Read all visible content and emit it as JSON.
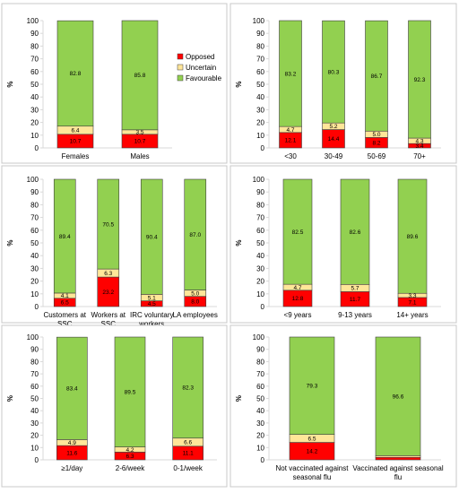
{
  "colors": {
    "opposed": "#ff0000",
    "uncertain": "#ffe699",
    "favourable": "#92d050"
  },
  "legend": {
    "placement": "right",
    "entries": [
      "Opposed",
      "Uncertain",
      "Favourable"
    ]
  },
  "chart_data": [
    {
      "type": "bar",
      "stacked": true,
      "title": "",
      "ylabel": "%",
      "ylim": [
        0,
        100
      ],
      "yticks": [
        0,
        10,
        20,
        30,
        40,
        50,
        60,
        70,
        80,
        90,
        100
      ],
      "categories": [
        [
          "Females"
        ],
        [
          "Males"
        ]
      ],
      "series": [
        {
          "name": "Opposed",
          "values": [
            10.7,
            10.7
          ]
        },
        {
          "name": "Uncertain",
          "values": [
            6.4,
            3.5
          ]
        },
        {
          "name": "Favourable",
          "values": [
            82.8,
            85.8
          ]
        }
      ],
      "show_legend": true
    },
    {
      "type": "bar",
      "stacked": true,
      "title": "",
      "ylabel": "%",
      "ylim": [
        0,
        100
      ],
      "yticks": [
        0,
        10,
        20,
        30,
        40,
        50,
        60,
        70,
        80,
        90,
        100
      ],
      "categories": [
        [
          "<30"
        ],
        [
          "30-49"
        ],
        [
          "50-69"
        ],
        [
          "70+"
        ]
      ],
      "series": [
        {
          "name": "Opposed",
          "values": [
            12.1,
            14.4,
            8.2,
            3.4
          ]
        },
        {
          "name": "Uncertain",
          "values": [
            4.7,
            5.2,
            5.0,
            4.3
          ]
        },
        {
          "name": "Favourable",
          "values": [
            83.2,
            80.3,
            86.7,
            92.3
          ]
        }
      ],
      "show_legend": false
    },
    {
      "type": "bar",
      "stacked": true,
      "title": "",
      "ylabel": "%",
      "ylim": [
        0,
        100
      ],
      "yticks": [
        0,
        10,
        20,
        30,
        40,
        50,
        60,
        70,
        80,
        90,
        100
      ],
      "categories": [
        [
          "Customers at",
          "SSC"
        ],
        [
          "Workers at",
          "SSC"
        ],
        [
          "IRC voluntary",
          "workers"
        ],
        [
          "LA employees"
        ]
      ],
      "series": [
        {
          "name": "Opposed",
          "values": [
            6.5,
            23.2,
            4.5,
            8.0
          ]
        },
        {
          "name": "Uncertain",
          "values": [
            4.1,
            6.3,
            5.1,
            5.0
          ]
        },
        {
          "name": "Favourable",
          "values": [
            89.4,
            70.5,
            90.4,
            87.0
          ]
        }
      ],
      "show_legend": false
    },
    {
      "type": "bar",
      "stacked": true,
      "title": "",
      "ylabel": "%",
      "ylim": [
        0,
        100
      ],
      "yticks": [
        0,
        10,
        20,
        30,
        40,
        50,
        60,
        70,
        80,
        90,
        100
      ],
      "categories": [
        [
          "<9 years"
        ],
        [
          "9-13 years"
        ],
        [
          "14+ years"
        ]
      ],
      "series": [
        {
          "name": "Opposed",
          "values": [
            12.8,
            11.7,
            7.1
          ]
        },
        {
          "name": "Uncertain",
          "values": [
            4.7,
            5.7,
            3.3
          ]
        },
        {
          "name": "Favourable",
          "values": [
            82.5,
            82.6,
            89.6
          ]
        }
      ],
      "show_legend": false
    },
    {
      "type": "bar",
      "stacked": true,
      "title": "",
      "ylabel": "%",
      "ylim": [
        0,
        100
      ],
      "yticks": [
        0,
        10,
        20,
        30,
        40,
        50,
        60,
        70,
        80,
        90,
        100
      ],
      "categories": [
        [
          "≥1/day"
        ],
        [
          "2-6/week"
        ],
        [
          "0-1/week"
        ]
      ],
      "series": [
        {
          "name": "Opposed",
          "values": [
            11.6,
            6.3,
            11.1
          ]
        },
        {
          "name": "Uncertain",
          "values": [
            4.9,
            4.2,
            6.6
          ]
        },
        {
          "name": "Favourable",
          "values": [
            83.4,
            89.5,
            82.3
          ]
        }
      ],
      "show_legend": false
    },
    {
      "type": "bar",
      "stacked": true,
      "title": "",
      "ylabel": "%",
      "ylim": [
        0,
        100
      ],
      "yticks": [
        0,
        10,
        20,
        30,
        40,
        50,
        60,
        70,
        80,
        90,
        100
      ],
      "categories": [
        [
          "Not vaccinated against",
          "seasonal flu"
        ],
        [
          "Vaccinated against seasonal",
          "flu"
        ]
      ],
      "series": [
        {
          "name": "Opposed",
          "values": [
            14.2,
            2.0
          ]
        },
        {
          "name": "Uncertain",
          "values": [
            6.5,
            1.4
          ]
        },
        {
          "name": "Favourable",
          "values": [
            79.3,
            96.6
          ]
        }
      ],
      "segment_labels": [
        [
          "14.2",
          "6.5",
          "79.3"
        ],
        [
          "",
          "",
          "96.6"
        ]
      ],
      "show_legend": false
    }
  ]
}
